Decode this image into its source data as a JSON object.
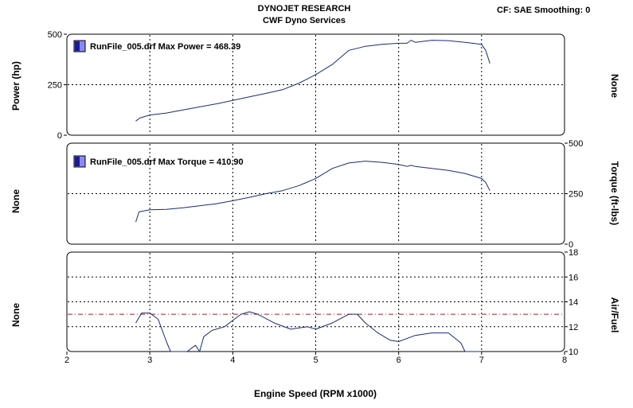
{
  "header": {
    "line1": "DYNOJET RESEARCH",
    "line2": "CWF Dyno Services",
    "right": "CF: SAE  Smoothing: 0"
  },
  "xlabel": "Engine Speed (RPM x1000)",
  "x_ticks": [
    "2",
    "3",
    "4",
    "5",
    "6",
    "7",
    "8"
  ],
  "colors": {
    "line": "#1a2a7a",
    "ref": "#a02020",
    "legend_dark": "#1a1a9a",
    "legend_light": "#8a8aee"
  },
  "chart_data": [
    {
      "type": "line",
      "name": "power",
      "legend": "RunFile_005.drf Max Power = 468.39",
      "ylabel_left": "Power (hp)",
      "ylabel_right": "None",
      "y_ticks_left": [
        "500",
        "250",
        "0"
      ],
      "y_ticks_right": [],
      "ylim": [
        0,
        500
      ],
      "xlim": [
        2,
        8
      ],
      "x": [
        2.83,
        2.88,
        3.0,
        3.2,
        3.4,
        3.6,
        3.8,
        4.0,
        4.2,
        4.4,
        4.6,
        4.8,
        5.0,
        5.2,
        5.4,
        5.6,
        5.8,
        6.0,
        6.1,
        6.15,
        6.2,
        6.4,
        6.6,
        6.8,
        7.0,
        7.05,
        7.1
      ],
      "y": [
        70,
        85,
        100,
        110,
        125,
        140,
        155,
        172,
        190,
        207,
        225,
        258,
        300,
        350,
        420,
        440,
        450,
        455,
        455,
        470,
        460,
        470,
        468,
        460,
        450,
        420,
        355
      ]
    },
    {
      "type": "line",
      "name": "torque",
      "legend": "RunFile_005.drf Max Torque = 410.90",
      "ylabel_left": "None",
      "ylabel_right": "Torque (ft-lbs)",
      "y_ticks_left": [],
      "y_ticks_right": [
        "500",
        "250",
        "0"
      ],
      "ylim": [
        0,
        500
      ],
      "xlim": [
        2,
        8
      ],
      "x": [
        2.83,
        2.87,
        3.0,
        3.2,
        3.4,
        3.6,
        3.8,
        4.0,
        4.2,
        4.4,
        4.6,
        4.8,
        5.0,
        5.2,
        5.4,
        5.6,
        5.8,
        6.0,
        6.1,
        6.15,
        6.2,
        6.4,
        6.6,
        6.8,
        7.0,
        7.05,
        7.1
      ],
      "y": [
        110,
        160,
        170,
        172,
        180,
        190,
        200,
        215,
        232,
        250,
        265,
        290,
        325,
        375,
        402,
        411,
        405,
        395,
        385,
        390,
        385,
        375,
        365,
        350,
        325,
        305,
        265
      ]
    },
    {
      "type": "line",
      "name": "air_fuel",
      "legend": "",
      "ylabel_left": "None",
      "ylabel_right": "Air/Fuel",
      "y_ticks_left": [],
      "y_ticks_right": [
        "18",
        "16",
        "14",
        "12",
        "10"
      ],
      "ylim": [
        10,
        18
      ],
      "xlim": [
        2,
        8
      ],
      "reference_line": 13,
      "x": [
        2.83,
        2.9,
        3.0,
        3.1,
        3.2,
        3.25,
        3.45,
        3.55,
        3.6,
        3.65,
        3.75,
        3.9,
        4.0,
        4.1,
        4.2,
        4.3,
        4.5,
        4.7,
        4.9,
        5.0,
        5.2,
        5.4,
        5.5,
        5.6,
        5.75,
        5.9,
        6.0,
        6.2,
        6.4,
        6.6,
        6.75,
        6.8,
        7.0
      ],
      "y": [
        12.3,
        13.1,
        13.1,
        12.6,
        10.8,
        10.0,
        10.0,
        10.5,
        10.0,
        11.2,
        11.7,
        12.0,
        12.5,
        13.0,
        13.2,
        13.0,
        12.3,
        11.8,
        12.0,
        11.8,
        12.3,
        13.0,
        13.0,
        12.3,
        11.5,
        10.9,
        10.8,
        11.3,
        11.5,
        11.5,
        10.7,
        10.0,
        10.0
      ]
    }
  ]
}
